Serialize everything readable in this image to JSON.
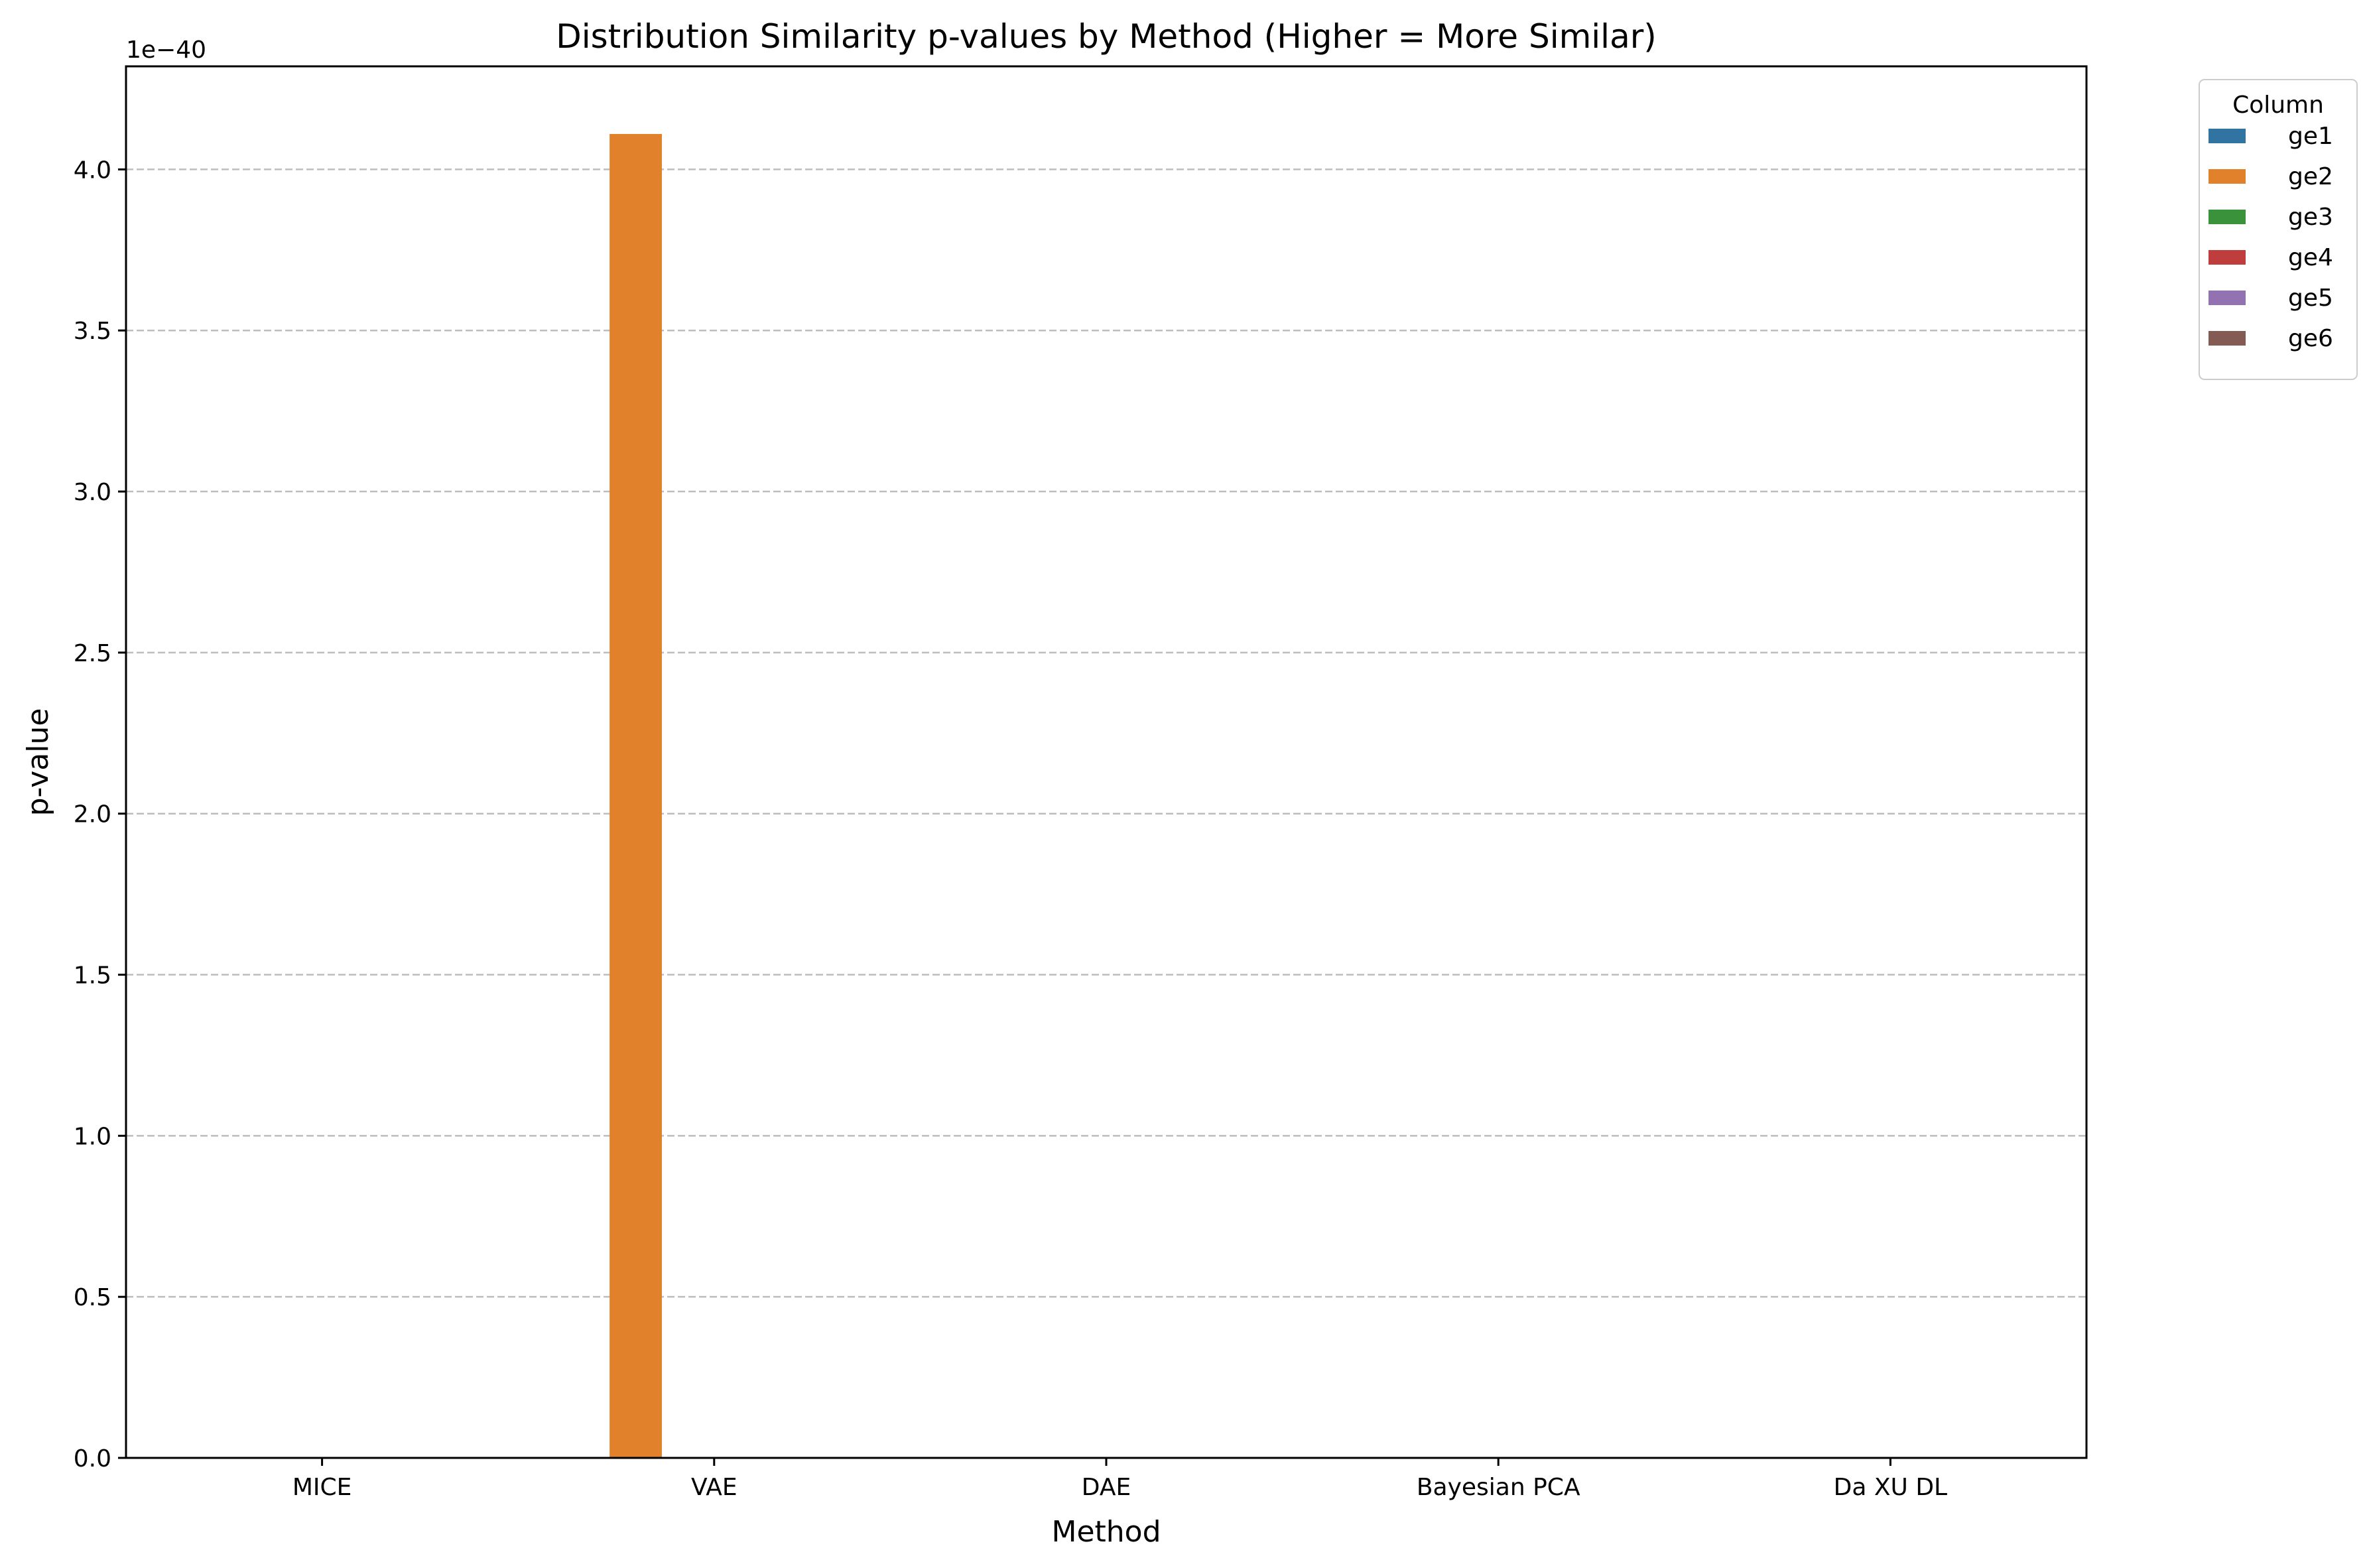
{
  "chart_data": {
    "type": "bar",
    "title": "Distribution Similarity p-values by Method (Higher = More Similar)",
    "xlabel": "Method",
    "ylabel": "p-value",
    "y_offset_label": "1e−40",
    "y_scale_factor": 1e-40,
    "ylim": [
      0,
      4.32
    ],
    "yticks": [
      0.0,
      0.5,
      1.0,
      1.5,
      2.0,
      2.5,
      3.0,
      3.5,
      4.0
    ],
    "ytick_labels": [
      "0.0",
      "0.5",
      "1.0",
      "1.5",
      "2.0",
      "2.5",
      "3.0",
      "3.5",
      "4.0"
    ],
    "categories": [
      "MICE",
      "VAE",
      "DAE",
      "Bayesian PCA",
      "Da XU DL"
    ],
    "grid": "y-dashed",
    "legend": {
      "title": "Column",
      "placement": "outside-right-top"
    },
    "series": [
      {
        "name": "ge1",
        "color": "#3274a1",
        "values": [
          0,
          0,
          0,
          0,
          0
        ]
      },
      {
        "name": "ge2",
        "color": "#e1812c",
        "values": [
          0,
          4.11,
          0,
          0,
          0
        ]
      },
      {
        "name": "ge3",
        "color": "#3a923a",
        "values": [
          0,
          0,
          0,
          0,
          0
        ]
      },
      {
        "name": "ge4",
        "color": "#c03d3e",
        "values": [
          0,
          0,
          0,
          0,
          0
        ]
      },
      {
        "name": "ge5",
        "color": "#9372b2",
        "values": [
          0,
          0,
          0,
          0,
          0
        ]
      },
      {
        "name": "ge6",
        "color": "#845b53",
        "values": [
          0,
          0,
          0,
          0,
          0
        ]
      }
    ]
  }
}
